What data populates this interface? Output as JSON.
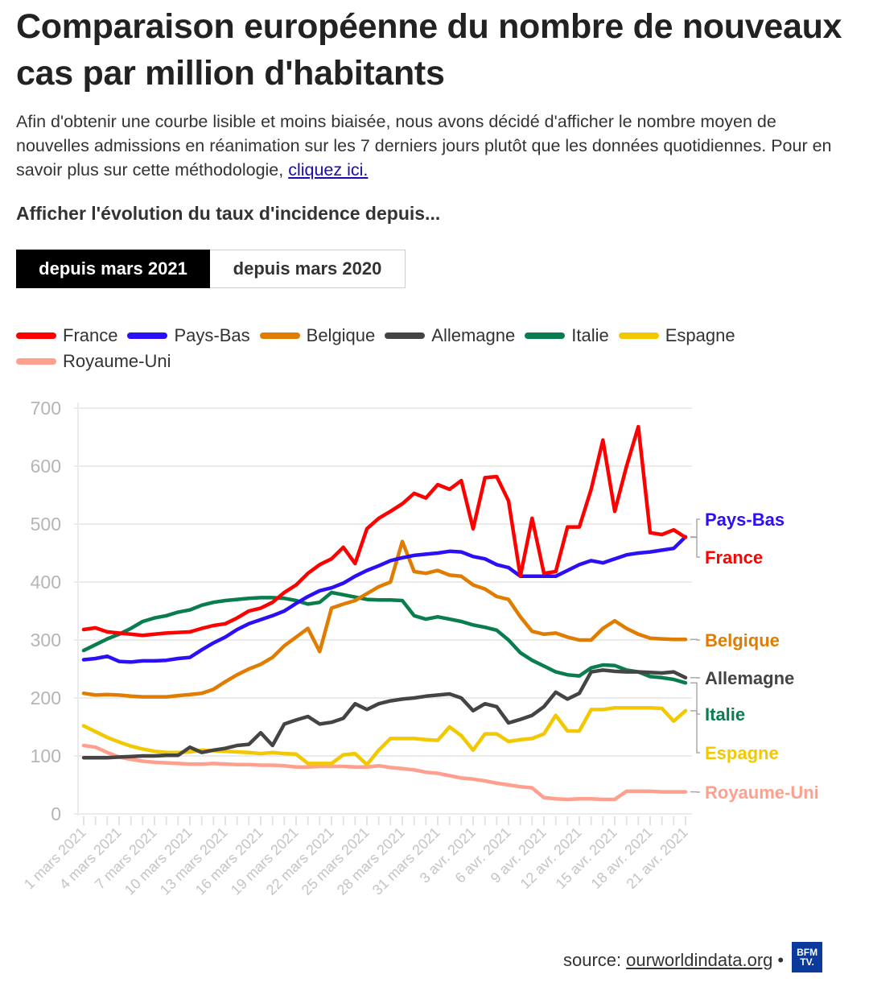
{
  "header": {
    "title": "Comparaison européenne du nombre de nouveaux cas par million d'habitants",
    "description": "Afin d'obtenir une courbe lisible et moins biaisée, nous avons décidé d'afficher le nombre moyen de nouvelles admissions en réanimation sur les 7 derniers jours plutôt que les données quotidiennes. Pour en savoir plus sur cette méthodologie,",
    "link": "cliquez ici.",
    "subtitle": "Afficher l'évolution du taux d'incidence depuis..."
  },
  "buttons": [
    {
      "label": "depuis mars 2021",
      "active": true
    },
    {
      "label": "depuis mars 2020",
      "active": false
    }
  ],
  "footer": {
    "source_label": "source:",
    "source_link": "ourworldindata.org",
    "separator": "•",
    "logo_text": "BFM TV."
  },
  "chart_data": {
    "type": "line",
    "title": "Comparaison européenne du nombre de nouveaux cas par million d'habitants",
    "xlabel": "",
    "ylabel": "",
    "ylim": [
      0,
      700
    ],
    "yticks": [
      0,
      100,
      200,
      300,
      400,
      500,
      600,
      700
    ],
    "x_tick_labels": [
      "1 mars 2021",
      "4 mars 2021",
      "7 mars 2021",
      "10 mars 2021",
      "13 mars 2021",
      "16 mars 2021",
      "19 mars 2021",
      "22 mars 2021",
      "25 mars 2021",
      "28 mars 2021",
      "31 mars 2021",
      "3 avr. 2021",
      "6 avr. 2021",
      "9 avr. 2021",
      "12 avr. 2021",
      "15 avr. 2021",
      "18 avr. 2021",
      "21 avr. 2021"
    ],
    "x_tick_every_days": 3,
    "n_days": 52,
    "grid": true,
    "legend_placement": "top",
    "series": [
      {
        "name": "France",
        "color": "#ff0000",
        "label": "France",
        "values": [
          318,
          321,
          314,
          312,
          310,
          308,
          310,
          312,
          313,
          314,
          320,
          325,
          328,
          338,
          350,
          355,
          365,
          382,
          395,
          415,
          430,
          440,
          460,
          432,
          492,
          510,
          522,
          535,
          553,
          545,
          568,
          560,
          575,
          492,
          580,
          582,
          540,
          410,
          510,
          415,
          418,
          495,
          495,
          560,
          645,
          522,
          600,
          668,
          485,
          482,
          490,
          477
        ]
      },
      {
        "name": "Pays-Bas",
        "color": "#2b0ff5",
        "label": "Pays-Bas",
        "values": [
          266,
          268,
          272,
          263,
          262,
          264,
          264,
          265,
          268,
          270,
          283,
          295,
          305,
          318,
          328,
          335,
          342,
          350,
          363,
          375,
          385,
          390,
          398,
          410,
          420,
          428,
          437,
          442,
          446,
          448,
          450,
          453,
          452,
          444,
          440,
          430,
          425,
          410,
          410,
          410,
          410,
          420,
          430,
          437,
          433,
          440,
          447,
          450,
          452,
          455,
          458,
          478
        ]
      },
      {
        "name": "Belgique",
        "color": "#e07c00",
        "label": "Belgique",
        "values": [
          208,
          205,
          206,
          205,
          203,
          202,
          202,
          202,
          204,
          206,
          208,
          215,
          228,
          240,
          250,
          258,
          270,
          290,
          305,
          320,
          280,
          355,
          362,
          368,
          380,
          392,
          400,
          470,
          418,
          415,
          420,
          412,
          410,
          395,
          388,
          375,
          370,
          340,
          315,
          310,
          312,
          305,
          300,
          300,
          320,
          333,
          320,
          310,
          303,
          302,
          301,
          301
        ]
      },
      {
        "name": "Allemagne",
        "color": "#444444",
        "label": "Allemagne",
        "values": [
          97,
          97,
          97,
          98,
          99,
          100,
          100,
          101,
          101,
          115,
          106,
          110,
          113,
          118,
          120,
          140,
          118,
          155,
          162,
          168,
          155,
          158,
          165,
          190,
          180,
          190,
          195,
          198,
          200,
          203,
          205,
          207,
          200,
          178,
          190,
          185,
          157,
          163,
          170,
          185,
          210,
          198,
          208,
          245,
          248,
          246,
          245,
          245,
          244,
          243,
          245,
          235
        ]
      },
      {
        "name": "Italie",
        "color": "#0a7d4f",
        "label": "Italie",
        "values": [
          282,
          292,
          302,
          310,
          320,
          332,
          338,
          342,
          348,
          352,
          360,
          365,
          368,
          370,
          372,
          373,
          373,
          372,
          368,
          362,
          365,
          382,
          378,
          374,
          370,
          369,
          369,
          368,
          342,
          336,
          340,
          336,
          332,
          326,
          322,
          317,
          300,
          278,
          265,
          255,
          245,
          240,
          238,
          252,
          257,
          256,
          248,
          245,
          237,
          235,
          232,
          226
        ]
      },
      {
        "name": "Espagne",
        "color": "#f2c800",
        "label": "Espagne",
        "values": [
          152,
          142,
          132,
          124,
          117,
          112,
          108,
          106,
          106,
          107,
          110,
          109,
          108,
          107,
          106,
          104,
          106,
          104,
          103,
          87,
          87,
          87,
          102,
          104,
          85,
          110,
          130,
          130,
          130,
          128,
          127,
          150,
          135,
          110,
          138,
          138,
          125,
          128,
          130,
          138,
          170,
          143,
          143,
          180,
          180,
          183,
          183,
          183,
          183,
          182,
          160,
          178
        ]
      },
      {
        "name": "Royaume-Uni",
        "color": "#ffa08e",
        "label": "Royaume-Uni",
        "values": [
          118,
          115,
          106,
          98,
          94,
          91,
          89,
          88,
          87,
          86,
          86,
          87,
          86,
          85,
          85,
          84,
          84,
          83,
          81,
          81,
          82,
          82,
          82,
          81,
          81,
          83,
          80,
          78,
          76,
          72,
          70,
          66,
          62,
          60,
          57,
          53,
          50,
          47,
          45,
          28,
          26,
          25,
          26,
          26,
          25,
          25,
          39,
          39,
          39,
          38,
          38,
          38
        ]
      }
    ]
  }
}
